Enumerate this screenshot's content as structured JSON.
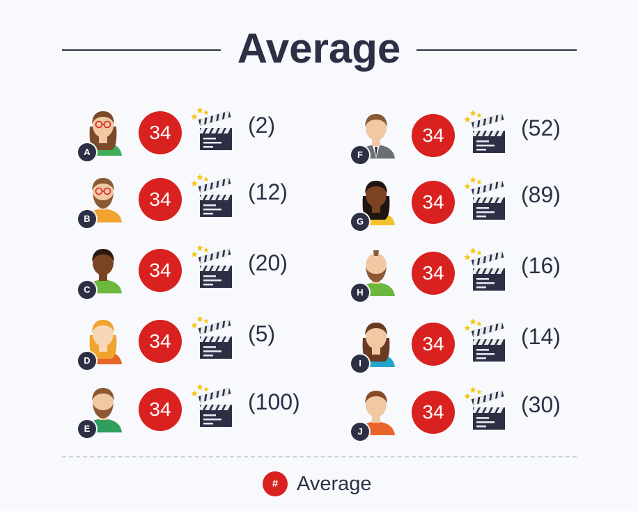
{
  "chart_data": {
    "type": "table",
    "title": "Average",
    "legend": {
      "symbol": "#",
      "label": "Average",
      "color": "#d9211f"
    },
    "entries": [
      {
        "letter": "A",
        "average": "34",
        "count": "(2)",
        "avatar": "woman-glasses-icon"
      },
      {
        "letter": "B",
        "average": "34",
        "count": "(12)",
        "avatar": "man-beard-glasses-icon"
      },
      {
        "letter": "C",
        "average": "34",
        "count": "(20)",
        "avatar": "man-dark-skin-icon"
      },
      {
        "letter": "D",
        "average": "34",
        "count": "(5)",
        "avatar": "woman-orange-hair-icon"
      },
      {
        "letter": "E",
        "average": "34",
        "count": "(100)",
        "avatar": "man-beard-icon"
      },
      {
        "letter": "F",
        "average": "34",
        "count": "(52)",
        "avatar": "man-suit-icon"
      },
      {
        "letter": "G",
        "average": "34",
        "count": "(89)",
        "avatar": "woman-dark-skin-icon"
      },
      {
        "letter": "H",
        "average": "34",
        "count": "(16)",
        "avatar": "man-long-beard-icon"
      },
      {
        "letter": "I",
        "average": "34",
        "count": "(14)",
        "avatar": "woman-brown-hair-icon"
      },
      {
        "letter": "J",
        "average": "34",
        "count": "(30)",
        "avatar": "woman-short-hair-icon"
      }
    ]
  },
  "colors": {
    "badge": "#d9211f",
    "text": "#2d3045",
    "background": "#f7f9fc"
  }
}
